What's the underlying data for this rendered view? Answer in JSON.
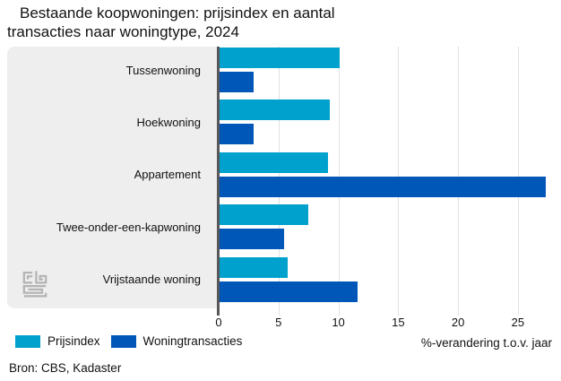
{
  "title": "Bestaande koopwoningen: prijsindex en aantal transacties naar woningtype, 2024",
  "source": "Bron: CBS, Kadaster",
  "chart_data": {
    "type": "bar",
    "orientation": "horizontal",
    "title": "Bestaande koopwoningen: prijsindex en aantal transacties naar woningtype, 2024",
    "categories": [
      "Tussenwoning",
      "Hoekwoning",
      "Appartement",
      "Twee-onder-een-kapwoning",
      "Vrijstaande woning"
    ],
    "series": [
      {
        "name": "Prijsindex",
        "color": "#00a1cd",
        "values": [
          10.1,
          9.3,
          9.1,
          7.5,
          5.8
        ]
      },
      {
        "name": "Woningtransacties",
        "color": "#0057b8",
        "values": [
          2.9,
          2.9,
          27.3,
          5.5,
          11.6
        ]
      }
    ],
    "xlabel": "%-verandering t.o.v. jaar",
    "ylabel": "",
    "xlim": [
      0,
      28.6
    ],
    "xticks": [
      0,
      5,
      10,
      15,
      20,
      25
    ],
    "grid": true,
    "legend_position": "bottom-left",
    "colors": {
      "grid": "#e0e0e0",
      "axis": "#58585a",
      "panel": "#eeeeee",
      "logo": "#b4b4b4"
    }
  }
}
